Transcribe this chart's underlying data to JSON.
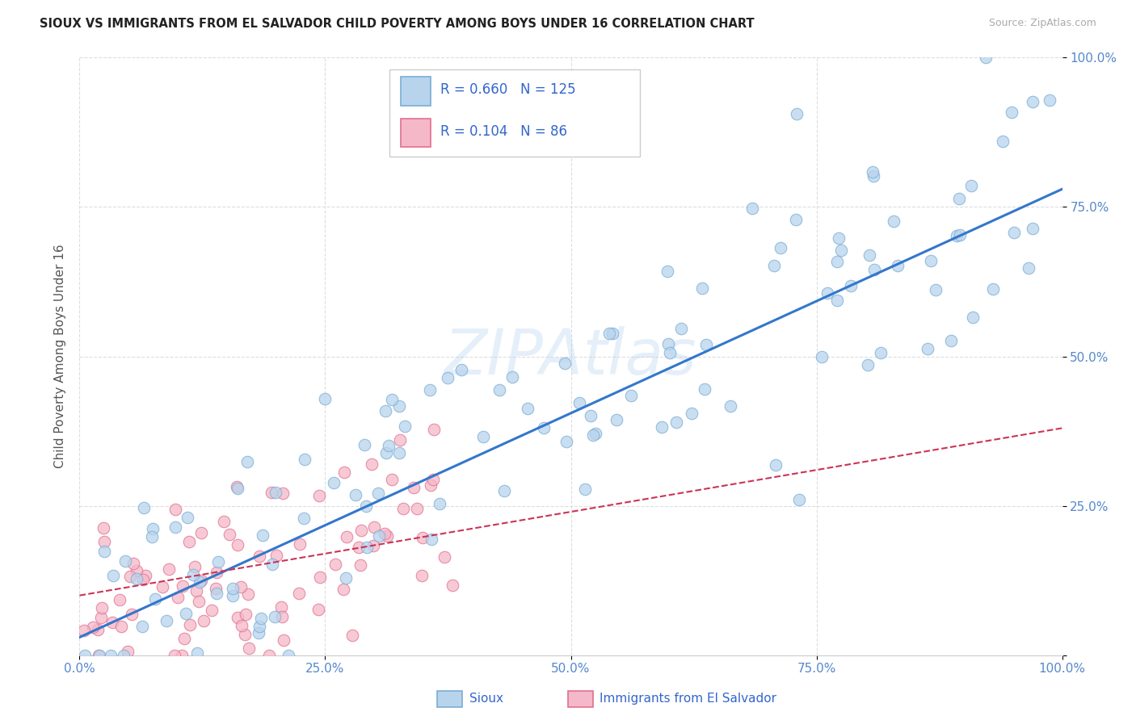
{
  "title": "SIOUX VS IMMIGRANTS FROM EL SALVADOR CHILD POVERTY AMONG BOYS UNDER 16 CORRELATION CHART",
  "source": "Source: ZipAtlas.com",
  "ylabel": "Child Poverty Among Boys Under 16",
  "watermark": "ZIPAtlas",
  "xlim": [
    0.0,
    1.0
  ],
  "ylim": [
    0.0,
    1.0
  ],
  "xticks": [
    0.0,
    0.25,
    0.5,
    0.75,
    1.0
  ],
  "yticks": [
    0.0,
    0.25,
    0.5,
    0.75,
    1.0
  ],
  "xticklabels": [
    "0.0%",
    "25.0%",
    "50.0%",
    "75.0%",
    "100.0%"
  ],
  "yticklabels": [
    "",
    "25.0%",
    "50.0%",
    "75.0%",
    "100.0%"
  ],
  "sioux_color": "#b8d4ed",
  "sioux_edge_color": "#7aadd4",
  "salvador_color": "#f5b8c8",
  "salvador_edge_color": "#e07090",
  "regression_sioux_color": "#3377cc",
  "regression_salvador_color": "#cc3355",
  "sioux_R": 0.66,
  "sioux_N": 125,
  "salvador_R": 0.104,
  "salvador_N": 86,
  "legend_color": "#3366cc",
  "title_color": "#222222",
  "axis_label_color": "#555555",
  "tick_color": "#5588cc",
  "grid_color": "#dddddd",
  "background_color": "#ffffff"
}
